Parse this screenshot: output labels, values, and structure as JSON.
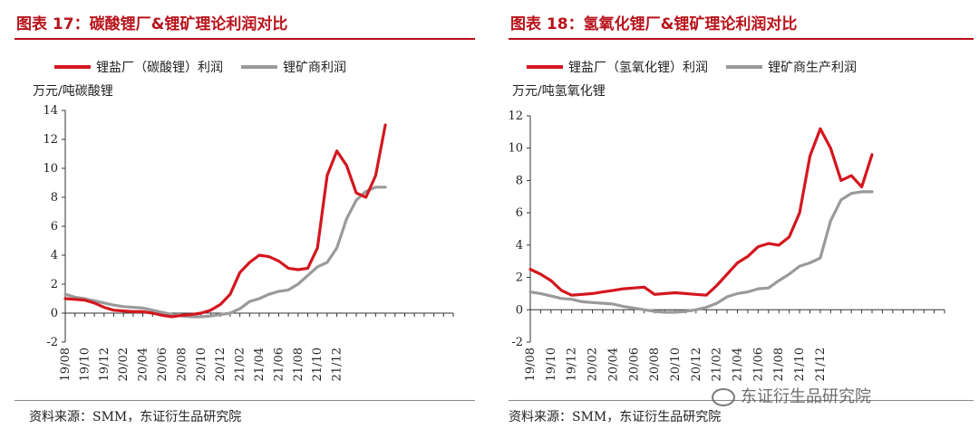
{
  "charts": [
    {
      "title": "图表 17：碳酸锂厂&锂矿理论利润对比",
      "unit_label": "万元/吨碳酸锂",
      "source": "资料来源：SMM，东证衍生品研究院"
    },
    {
      "title": "图表 18：氢氧化锂厂&锂矿理论利润对比",
      "unit_label": "万元/吨氢氧化锂",
      "source": "资料来源：SMM，东证衍生品研究院"
    }
  ],
  "watermark": "东证衍生品研究院",
  "colors": {
    "red": "#d4161e",
    "gray": "#9a9a9a",
    "title": "#b8121a"
  },
  "chart_data": [
    {
      "type": "line",
      "title": "图表 17：碳酸锂厂&锂矿理论利润对比",
      "ylabel": "万元/吨碳酸锂",
      "ylim": [
        -2,
        14
      ],
      "yticks": [
        -2,
        0,
        2,
        4,
        6,
        8,
        10,
        12,
        14
      ],
      "xlim": [
        "2019-08",
        "2022-12"
      ],
      "xticks": [
        "19/08",
        "19/10",
        "19/12",
        "20/02",
        "20/04",
        "20/06",
        "20/08",
        "20/10",
        "20/12",
        "21/02",
        "21/04",
        "21/06",
        "21/08",
        "21/10",
        "21/12"
      ],
      "grid": false,
      "legend_position": "top",
      "series": [
        {
          "name": "锂盐厂（碳酸锂）利润",
          "color": "#d4161e",
          "points": [
            [
              "2019-08",
              1.0
            ],
            [
              "2019-09",
              0.95
            ],
            [
              "2019-10",
              0.9
            ],
            [
              "2019-11",
              0.7
            ],
            [
              "2019-12",
              0.4
            ],
            [
              "2020-01",
              0.2
            ],
            [
              "2020-02",
              0.15
            ],
            [
              "2020-03",
              0.1
            ],
            [
              "2020-04",
              0.1
            ],
            [
              "2020-05",
              0.0
            ],
            [
              "2020-06",
              -0.15
            ],
            [
              "2020-07",
              -0.25
            ],
            [
              "2020-08",
              -0.15
            ],
            [
              "2020-09",
              -0.1
            ],
            [
              "2020-10",
              0.0
            ],
            [
              "2020-11",
              0.2
            ],
            [
              "2020-12",
              0.6
            ],
            [
              "2021-01",
              1.3
            ],
            [
              "2021-02",
              2.8
            ],
            [
              "2021-03",
              3.5
            ],
            [
              "2021-04",
              4.0
            ],
            [
              "2021-05",
              3.9
            ],
            [
              "2021-06",
              3.6
            ],
            [
              "2021-07",
              3.1
            ],
            [
              "2021-08",
              3.0
            ],
            [
              "2021-09",
              3.1
            ],
            [
              "2021-10",
              4.5
            ],
            [
              "2021-11",
              9.5
            ],
            [
              "2021-12",
              11.2
            ],
            [
              "2022-01",
              10.2
            ],
            [
              "2022-02",
              8.3
            ],
            [
              "2022-03",
              8.0
            ],
            [
              "2022-04",
              9.5
            ],
            [
              "2022-05",
              13.0
            ]
          ]
        },
        {
          "name": "锂矿商利润",
          "color": "#9a9a9a",
          "points": [
            [
              "2019-08",
              1.3
            ],
            [
              "2019-09",
              1.1
            ],
            [
              "2019-10",
              1.0
            ],
            [
              "2019-11",
              0.85
            ],
            [
              "2019-12",
              0.7
            ],
            [
              "2020-01",
              0.55
            ],
            [
              "2020-02",
              0.45
            ],
            [
              "2020-03",
              0.4
            ],
            [
              "2020-04",
              0.35
            ],
            [
              "2020-05",
              0.2
            ],
            [
              "2020-06",
              0.05
            ],
            [
              "2020-07",
              -0.1
            ],
            [
              "2020-08",
              -0.2
            ],
            [
              "2020-09",
              -0.25
            ],
            [
              "2020-10",
              -0.25
            ],
            [
              "2020-11",
              -0.2
            ],
            [
              "2020-12",
              -0.1
            ],
            [
              "2021-01",
              0.0
            ],
            [
              "2021-02",
              0.3
            ],
            [
              "2021-03",
              0.8
            ],
            [
              "2021-04",
              1.0
            ],
            [
              "2021-05",
              1.3
            ],
            [
              "2021-06",
              1.5
            ],
            [
              "2021-07",
              1.6
            ],
            [
              "2021-08",
              2.0
            ],
            [
              "2021-09",
              2.6
            ],
            [
              "2021-10",
              3.2
            ],
            [
              "2021-11",
              3.5
            ],
            [
              "2021-12",
              4.5
            ],
            [
              "2022-01",
              6.5
            ],
            [
              "2022-02",
              7.8
            ],
            [
              "2022-03",
              8.4
            ],
            [
              "2022-04",
              8.7
            ],
            [
              "2022-05",
              8.7
            ]
          ]
        }
      ]
    },
    {
      "type": "line",
      "title": "图表 18：氢氧化锂厂&锂矿理论利润对比",
      "ylabel": "万元/吨氢氧化锂",
      "ylim": [
        -2,
        12
      ],
      "yticks": [
        -2,
        0,
        2,
        4,
        6,
        8,
        10,
        12
      ],
      "xlim": [
        "2019-08",
        "2022-12"
      ],
      "xticks": [
        "19/08",
        "19/10",
        "19/12",
        "20/02",
        "20/04",
        "20/06",
        "20/08",
        "20/10",
        "20/12",
        "21/02",
        "21/04",
        "21/06",
        "21/08",
        "21/10",
        "21/12"
      ],
      "grid": false,
      "legend_position": "top",
      "series": [
        {
          "name": "锂盐厂（氢氧化锂）利润",
          "color": "#d4161e",
          "points": [
            [
              "2019-08",
              2.5
            ],
            [
              "2019-09",
              2.2
            ],
            [
              "2019-10",
              1.8
            ],
            [
              "2019-11",
              1.2
            ],
            [
              "2019-12",
              0.9
            ],
            [
              "2020-01",
              0.95
            ],
            [
              "2020-02",
              1.0
            ],
            [
              "2020-03",
              1.1
            ],
            [
              "2020-04",
              1.2
            ],
            [
              "2020-05",
              1.3
            ],
            [
              "2020-06",
              1.35
            ],
            [
              "2020-07",
              1.4
            ],
            [
              "2020-08",
              0.95
            ],
            [
              "2020-09",
              1.0
            ],
            [
              "2020-10",
              1.05
            ],
            [
              "2020-11",
              1.0
            ],
            [
              "2020-12",
              0.95
            ],
            [
              "2021-01",
              0.9
            ],
            [
              "2021-02",
              1.5
            ],
            [
              "2021-03",
              2.2
            ],
            [
              "2021-04",
              2.9
            ],
            [
              "2021-05",
              3.3
            ],
            [
              "2021-06",
              3.9
            ],
            [
              "2021-07",
              4.1
            ],
            [
              "2021-08",
              4.0
            ],
            [
              "2021-09",
              4.5
            ],
            [
              "2021-10",
              6.0
            ],
            [
              "2021-11",
              9.5
            ],
            [
              "2021-12",
              11.2
            ],
            [
              "2022-01",
              10.0
            ],
            [
              "2022-02",
              8.0
            ],
            [
              "2022-03",
              8.3
            ],
            [
              "2022-04",
              7.6
            ],
            [
              "2022-05",
              9.6
            ]
          ]
        },
        {
          "name": "锂矿商生产利润",
          "color": "#9a9a9a",
          "points": [
            [
              "2019-08",
              1.1
            ],
            [
              "2019-09",
              1.0
            ],
            [
              "2019-10",
              0.85
            ],
            [
              "2019-11",
              0.7
            ],
            [
              "2019-12",
              0.65
            ],
            [
              "2020-01",
              0.5
            ],
            [
              "2020-02",
              0.45
            ],
            [
              "2020-03",
              0.4
            ],
            [
              "2020-04",
              0.35
            ],
            [
              "2020-05",
              0.2
            ],
            [
              "2020-06",
              0.1
            ],
            [
              "2020-07",
              0.0
            ],
            [
              "2020-08",
              -0.1
            ],
            [
              "2020-09",
              -0.15
            ],
            [
              "2020-10",
              -0.15
            ],
            [
              "2020-11",
              -0.1
            ],
            [
              "2020-12",
              0.0
            ],
            [
              "2021-01",
              0.15
            ],
            [
              "2021-02",
              0.4
            ],
            [
              "2021-03",
              0.8
            ],
            [
              "2021-04",
              1.0
            ],
            [
              "2021-05",
              1.1
            ],
            [
              "2021-06",
              1.3
            ],
            [
              "2021-07",
              1.35
            ],
            [
              "2021-08",
              1.8
            ],
            [
              "2021-09",
              2.2
            ],
            [
              "2021-10",
              2.7
            ],
            [
              "2021-11",
              2.9
            ],
            [
              "2021-12",
              3.2
            ],
            [
              "2022-01",
              5.5
            ],
            [
              "2022-02",
              6.8
            ],
            [
              "2022-03",
              7.2
            ],
            [
              "2022-04",
              7.3
            ],
            [
              "2022-05",
              7.3
            ]
          ]
        }
      ]
    }
  ]
}
